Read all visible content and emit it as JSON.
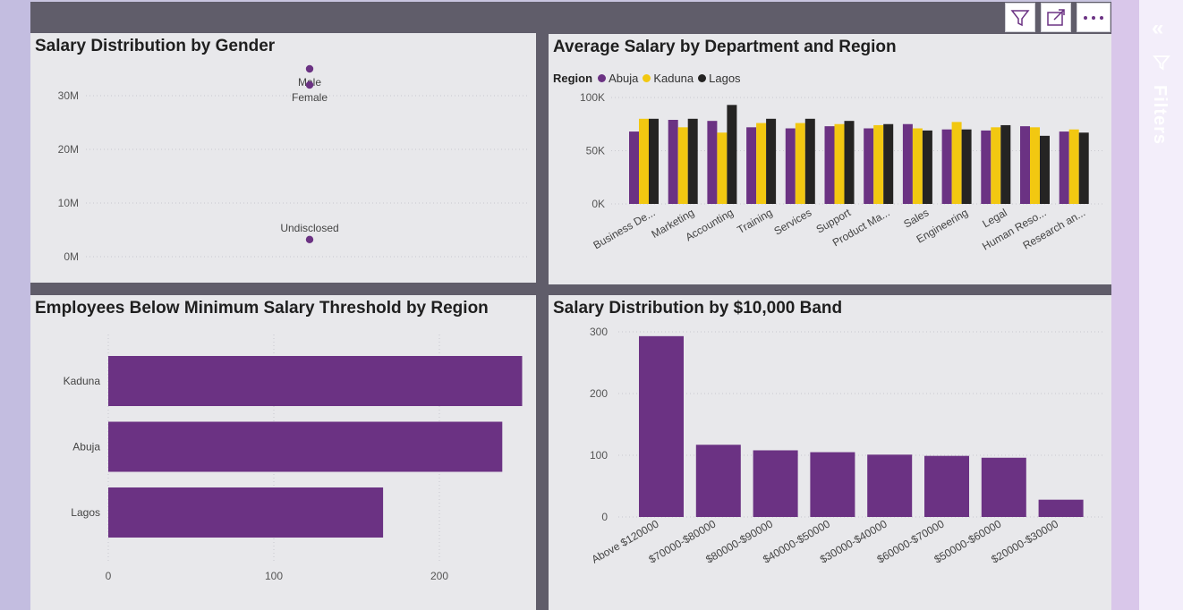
{
  "toolbar": {
    "filter_icon": "filter-icon",
    "focus_icon": "focus-mode-icon",
    "more_icon": "more-options-icon"
  },
  "filters_pane": {
    "label": "Filters",
    "collapse_icon": "double-chevron-left-icon"
  },
  "colors": {
    "purple": "#6b3283",
    "yellow": "#f2c811",
    "black": "#252423"
  },
  "gender_chart": {
    "title": "Salary Distribution by Gender",
    "chart_data": {
      "type": "scatter",
      "yticks": [
        "30M",
        "20M",
        "10M",
        "0M"
      ],
      "ylim": [
        0,
        35000000
      ],
      "points": [
        {
          "label": "Male",
          "y": 35000000
        },
        {
          "label": "Female",
          "y": 32000000
        },
        {
          "label": "Undisclosed",
          "y": 3200000
        }
      ]
    }
  },
  "dept_chart": {
    "title": "Average Salary by Department and Region",
    "legend_title": "Region",
    "chart_data": {
      "type": "bar",
      "ylim": [
        0,
        100000
      ],
      "yticks": [
        "100K",
        "50K",
        "0K"
      ],
      "categories": [
        "Business De...",
        "Marketing",
        "Accounting",
        "Training",
        "Services",
        "Support",
        "Product Ma...",
        "Sales",
        "Engineering",
        "Legal",
        "Human Reso...",
        "Research an..."
      ],
      "series": [
        {
          "name": "Abuja",
          "values": [
            68000,
            79000,
            78000,
            72000,
            71000,
            73000,
            71000,
            75000,
            70000,
            69000,
            73000,
            68000
          ]
        },
        {
          "name": "Kaduna",
          "values": [
            80000,
            72000,
            67000,
            76000,
            76000,
            75000,
            74000,
            71000,
            77000,
            72000,
            72000,
            70000
          ]
        },
        {
          "name": "Lagos",
          "values": [
            80000,
            80000,
            93000,
            80000,
            80000,
            78000,
            75000,
            69000,
            70000,
            74000,
            64000,
            67000
          ]
        }
      ]
    }
  },
  "threshold_chart": {
    "title": "Employees Below Minimum Salary Threshold by Region",
    "chart_data": {
      "type": "bar",
      "orientation": "horizontal",
      "categories": [
        "Kaduna",
        "Abuja",
        "Lagos"
      ],
      "values": [
        250,
        238,
        166
      ],
      "xlim": [
        0,
        250
      ],
      "xticks": [
        "0",
        "100",
        "200"
      ]
    }
  },
  "band_chart": {
    "title": "Salary Distribution by $10,000 Band",
    "chart_data": {
      "type": "bar",
      "ylim": [
        0,
        300
      ],
      "yticks": [
        "300",
        "200",
        "100",
        "0"
      ],
      "categories": [
        "Above $120000",
        "$70000-$80000",
        "$80000-$90000",
        "$40000-$50000",
        "$30000-$40000",
        "$60000-$70000",
        "$50000-$60000",
        "$20000-$30000"
      ],
      "values": [
        293,
        117,
        108,
        105,
        101,
        99,
        96,
        28
      ]
    }
  }
}
